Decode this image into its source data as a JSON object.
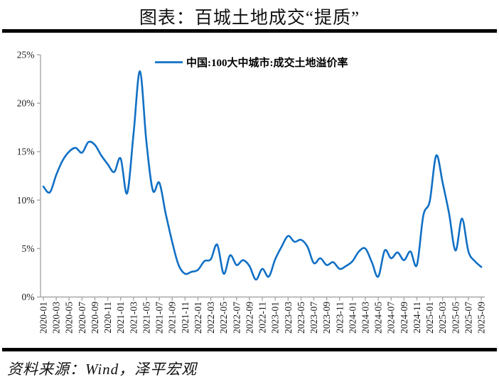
{
  "page": {
    "title": "图表：百城土地成交“提质”",
    "source": "资料来源：Wind，泽平宏观"
  },
  "chart_data": {
    "type": "line",
    "title": "图表：百城土地成交“提质”",
    "series_name": "中国:100大中城市:成交土地溢价率",
    "legend_position": "top-center",
    "grid": false,
    "line_color": "#1170C5",
    "axis_color": "#A8A8A8",
    "ylim": [
      0,
      25
    ],
    "y_tick_labels": [
      "0%",
      "5%",
      "10%",
      "15%",
      "20%",
      "25%"
    ],
    "x_tick_every": 2,
    "x": [
      "2020-01",
      "2020-02",
      "2020-03",
      "2020-04",
      "2020-05",
      "2020-06",
      "2020-07",
      "2020-08",
      "2020-09",
      "2020-10",
      "2020-11",
      "2020-12",
      "2021-01",
      "2021-02",
      "2021-03",
      "2021-04",
      "2021-05",
      "2021-06",
      "2021-07",
      "2021-08",
      "2021-09",
      "2021-10",
      "2021-11",
      "2021-12",
      "2022-01",
      "2022-02",
      "2022-03",
      "2022-04",
      "2022-05",
      "2022-06",
      "2022-07",
      "2022-08",
      "2022-09",
      "2022-10",
      "2022-11",
      "2022-12",
      "2023-01",
      "2023-02",
      "2023-03",
      "2023-04",
      "2023-05",
      "2023-06",
      "2023-07",
      "2023-08",
      "2023-09",
      "2023-10",
      "2023-11",
      "2023-12",
      "2024-01",
      "2024-02",
      "2024-03",
      "2024-04",
      "2024-05",
      "2024-06",
      "2024-07",
      "2024-08",
      "2024-09",
      "2024-10",
      "2024-11",
      "2024-12",
      "2025-01",
      "2025-02",
      "2025-03",
      "2025-04",
      "2025-05",
      "2025-06",
      "2025-07",
      "2025-08",
      "2025-09"
    ],
    "values": [
      11.4,
      10.8,
      12.6,
      14.1,
      15.0,
      15.4,
      14.9,
      16.0,
      15.7,
      14.6,
      13.7,
      12.9,
      14.3,
      10.7,
      16.8,
      23.3,
      16.0,
      11.0,
      11.8,
      8.6,
      5.7,
      3.3,
      2.4,
      2.6,
      2.8,
      3.7,
      3.9,
      5.4,
      2.4,
      4.3,
      3.3,
      3.8,
      3.2,
      1.8,
      2.9,
      2.1,
      3.9,
      5.2,
      6.3,
      5.7,
      5.9,
      5.2,
      3.5,
      4.0,
      3.3,
      3.6,
      2.9,
      3.2,
      3.7,
      4.7,
      5.0,
      3.6,
      2.1,
      4.8,
      4.0,
      4.6,
      3.8,
      4.7,
      3.3,
      8.4,
      9.9,
      14.6,
      11.8,
      8.6,
      4.8,
      8.1,
      4.7,
      3.7,
      3.1
    ]
  }
}
